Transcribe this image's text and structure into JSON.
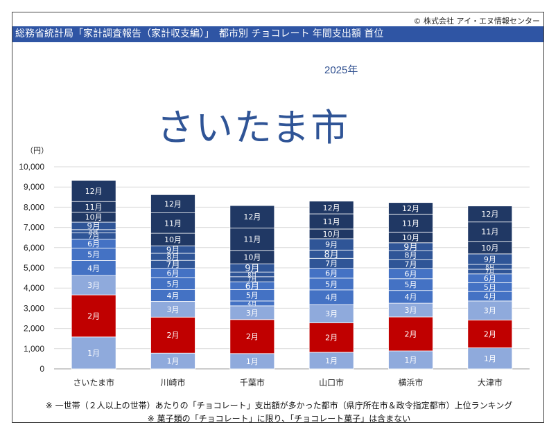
{
  "header": {
    "copyright": "© 株式会社 アイ・エヌ情報センター",
    "title": "総務省統計局「家計調査報告（家計収支編）」　都市別 チョコレート 年間支出額 首位",
    "year": "2025年",
    "top_city": "さいたま市"
  },
  "notes": {
    "line1": "※ 一世帯（２人以上の世帯）あたりの「チョコレート」支出額が多かった都市（県庁所在市＆政令指定都市）上位ランキング",
    "line2": "※ 菓子類の「チョコレート」に限り、「チョコレート菓子」は含まない"
  },
  "chart_data": {
    "type": "bar",
    "stacked": true,
    "ylabel": "（円）",
    "ylim": [
      0,
      10000
    ],
    "yticks": [
      "0",
      "1,000",
      "2,000",
      "3,000",
      "4,000",
      "5,000",
      "6,000",
      "7,000",
      "8,000",
      "9,000",
      "10,000"
    ],
    "grid": true,
    "categories": [
      "さいたま市",
      "川崎市",
      "千葉市",
      "山口市",
      "横浜市",
      "大津市"
    ],
    "series": [
      {
        "name": "1月",
        "color": "#8faadc",
        "values": [
          1580,
          780,
          760,
          820,
          890,
          1040
        ]
      },
      {
        "name": "2月",
        "color": "#c00000",
        "values": [
          2080,
          1780,
          1680,
          1460,
          1680,
          1380
        ]
      },
      {
        "name": "3月",
        "color": "#8faadc",
        "values": [
          960,
          780,
          680,
          900,
          680,
          940
        ]
      },
      {
        "name": "4月",
        "color": "#4472c4",
        "values": [
          740,
          580,
          240,
          730,
          630,
          470
        ]
      },
      {
        "name": "5月",
        "color": "#4472c4",
        "values": [
          620,
          590,
          560,
          580,
          580,
          430
        ]
      },
      {
        "name": "6月",
        "color": "#4472c4",
        "values": [
          440,
          470,
          390,
          490,
          510,
          440
        ]
      },
      {
        "name": "7月",
        "color": "#2f5597",
        "values": [
          310,
          390,
          250,
          490,
          450,
          230
        ]
      },
      {
        "name": "8月",
        "color": "#2f5597",
        "values": [
          160,
          350,
          230,
          410,
          430,
          240
        ]
      },
      {
        "name": "9月",
        "color": "#2f5597",
        "values": [
          370,
          370,
          410,
          560,
          390,
          520
        ]
      },
      {
        "name": "10月",
        "color": "#203864",
        "values": [
          500,
          620,
          660,
          480,
          530,
          620
        ]
      },
      {
        "name": "11月",
        "color": "#203864",
        "values": [
          520,
          1010,
          1110,
          750,
          890,
          960
        ]
      },
      {
        "name": "12月",
        "color": "#203864",
        "values": [
          1050,
          900,
          1110,
          630,
          570,
          790
        ]
      }
    ]
  }
}
